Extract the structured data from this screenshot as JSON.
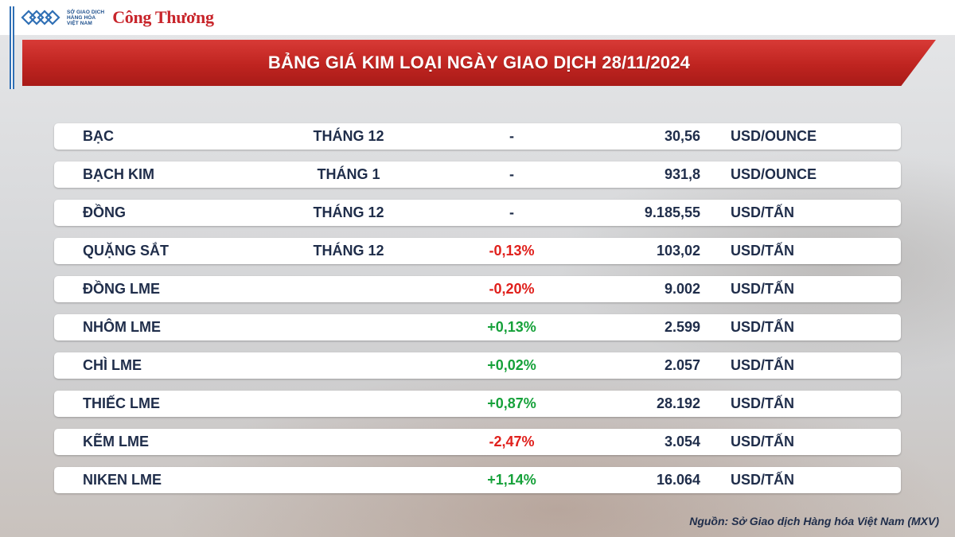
{
  "header": {
    "logo_lines": [
      "SỞ GIAO DỊCH",
      "HÀNG HÓA",
      "VIỆT NAM"
    ],
    "brand": "Công Thương"
  },
  "banner": {
    "title": "BẢNG GIÁ KIM LOẠI NGÀY GIAO DỊCH 28/11/2024"
  },
  "table": {
    "rows": [
      {
        "name": "BẠC",
        "month": "THÁNG 12",
        "change": "-",
        "price": "30,56",
        "unit": "USD/OUNCE",
        "trend": "none"
      },
      {
        "name": "BẠCH KIM",
        "month": "THÁNG 1",
        "change": "-",
        "price": "931,8",
        "unit": "USD/OUNCE",
        "trend": "none"
      },
      {
        "name": "ĐỒNG",
        "month": "THÁNG 12",
        "change": "-",
        "price": "9.185,55",
        "unit": "USD/TẤN",
        "trend": "none"
      },
      {
        "name": "QUẶNG SẮT",
        "month": "THÁNG 12",
        "change": "-0,13%",
        "price": "103,02",
        "unit": "USD/TẤN",
        "trend": "down"
      },
      {
        "name": "ĐỒNG LME",
        "month": "",
        "change": "-0,20%",
        "price": "9.002",
        "unit": "USD/TẤN",
        "trend": "down"
      },
      {
        "name": "NHÔM LME",
        "month": "",
        "change": "+0,13%",
        "price": "2.599",
        "unit": "USD/TẤN",
        "trend": "up"
      },
      {
        "name": "CHÌ LME",
        "month": "",
        "change": "+0,02%",
        "price": "2.057",
        "unit": "USD/TẤN",
        "trend": "up"
      },
      {
        "name": "THIẾC LME",
        "month": "",
        "change": "+0,87%",
        "price": "28.192",
        "unit": "USD/TẤN",
        "trend": "up"
      },
      {
        "name": "KẼM LME",
        "month": "",
        "change": "-2,47%",
        "price": "3.054",
        "unit": "USD/TẤN",
        "trend": "down"
      },
      {
        "name": "NIKEN LME",
        "month": "",
        "change": "+1,14%",
        "price": "16.064",
        "unit": "USD/TẤN",
        "trend": "up"
      }
    ]
  },
  "footer": {
    "source": "Nguồn: Sở Giao dịch Hàng hóa Việt Nam (MXV)"
  },
  "colors": {
    "banner": "#c8252b",
    "negative": "#e0201c",
    "positive": "#16a13a",
    "text": "#1f2d4a"
  }
}
